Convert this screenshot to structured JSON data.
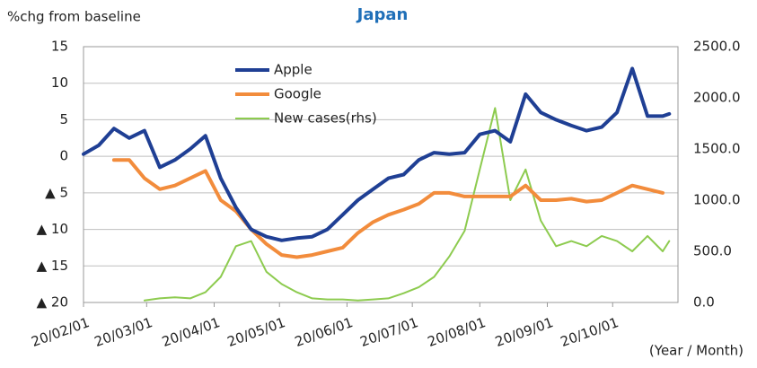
{
  "chart_data": {
    "type": "line",
    "title": "Japan",
    "y_label": "%chg from baseline",
    "x_label": "(Year / Month)",
    "x": [
      "20/02/01",
      "20/02/08",
      "20/02/15",
      "20/02/22",
      "20/02/29",
      "20/03/07",
      "20/03/14",
      "20/03/21",
      "20/03/28",
      "20/04/04",
      "20/04/11",
      "20/04/18",
      "20/04/25",
      "20/05/02",
      "20/05/09",
      "20/05/16",
      "20/05/23",
      "20/05/30",
      "20/06/06",
      "20/06/13",
      "20/06/20",
      "20/06/27",
      "20/07/04",
      "20/07/11",
      "20/07/18",
      "20/07/25",
      "20/08/01",
      "20/08/08",
      "20/08/15",
      "20/08/22",
      "20/08/29",
      "20/09/05",
      "20/09/12",
      "20/09/19",
      "20/09/26",
      "20/10/03",
      "20/10/10",
      "20/10/17",
      "20/10/24",
      "20/10/27"
    ],
    "series": [
      {
        "name": "Apple",
        "color": "#1f3f94",
        "values": [
          0.3,
          1.5,
          3.8,
          2.5,
          3.5,
          -1.5,
          -0.5,
          1,
          2.8,
          -3,
          -7,
          -10,
          -11,
          -11.5,
          -11.2,
          -11,
          -10,
          -8,
          -6,
          -4.5,
          -3,
          -2.5,
          -0.5,
          0.5,
          0.3,
          0.5,
          3,
          3.5,
          2,
          8.5,
          6,
          5,
          4.2,
          3.5,
          4,
          6,
          12,
          5.5,
          5.5,
          5.8
        ]
      },
      {
        "name": "Google",
        "color": "#f28c3c",
        "values": [
          null,
          null,
          -0.5,
          -0.5,
          -3,
          -4.5,
          -4,
          -3,
          -2,
          -6,
          -7.5,
          -10,
          -12,
          -13.5,
          -13.8,
          -13.5,
          -13,
          -12.5,
          -10.5,
          -9,
          -8,
          -7.3,
          -6.5,
          -5,
          -5,
          -5.5,
          -5.5,
          -5.5,
          -5.5,
          -4,
          -6,
          -6,
          -5.8,
          -6.2,
          -6,
          -5,
          -4,
          -4.5,
          -5,
          null
        ]
      },
      {
        "name": "New cases(rhs)",
        "color": "#8dcb4f",
        "axis": "y2",
        "values": [
          null,
          null,
          null,
          null,
          20,
          40,
          50,
          40,
          100,
          250,
          550,
          600,
          300,
          180,
          100,
          40,
          30,
          30,
          20,
          30,
          40,
          90,
          150,
          250,
          450,
          700,
          1300,
          1900,
          1000,
          1300,
          800,
          550,
          600,
          550,
          650,
          600,
          500,
          650,
          500,
          600
        ]
      }
    ],
    "xlim": [
      "20/02/01",
      "20/10/31"
    ],
    "xticks": [
      "20/02/01",
      "20/03/01",
      "20/04/01",
      "20/05/01",
      "20/06/01",
      "20/07/01",
      "20/08/01",
      "20/09/01",
      "20/10/01"
    ],
    "ylim": [
      -20,
      15
    ],
    "yticks": [
      15,
      10,
      5,
      0,
      {
        "value": -5,
        "label": "▲ 5"
      },
      {
        "value": -10,
        "label": "▲ 10"
      },
      {
        "value": -15,
        "label": "▲ 15"
      },
      {
        "value": -20,
        "label": "▲ 20"
      }
    ],
    "y2lim": [
      0,
      2500
    ],
    "y2ticks": [
      {
        "value": 2500,
        "label": "2500.0"
      },
      {
        "value": 2000,
        "label": "2000.0"
      },
      {
        "value": 1500,
        "label": "1500.0"
      },
      {
        "value": 1000,
        "label": "1000.0"
      },
      {
        "value": 500,
        "label": "500.0"
      },
      {
        "value": 0,
        "label": "0.0"
      }
    ],
    "grid": true
  }
}
